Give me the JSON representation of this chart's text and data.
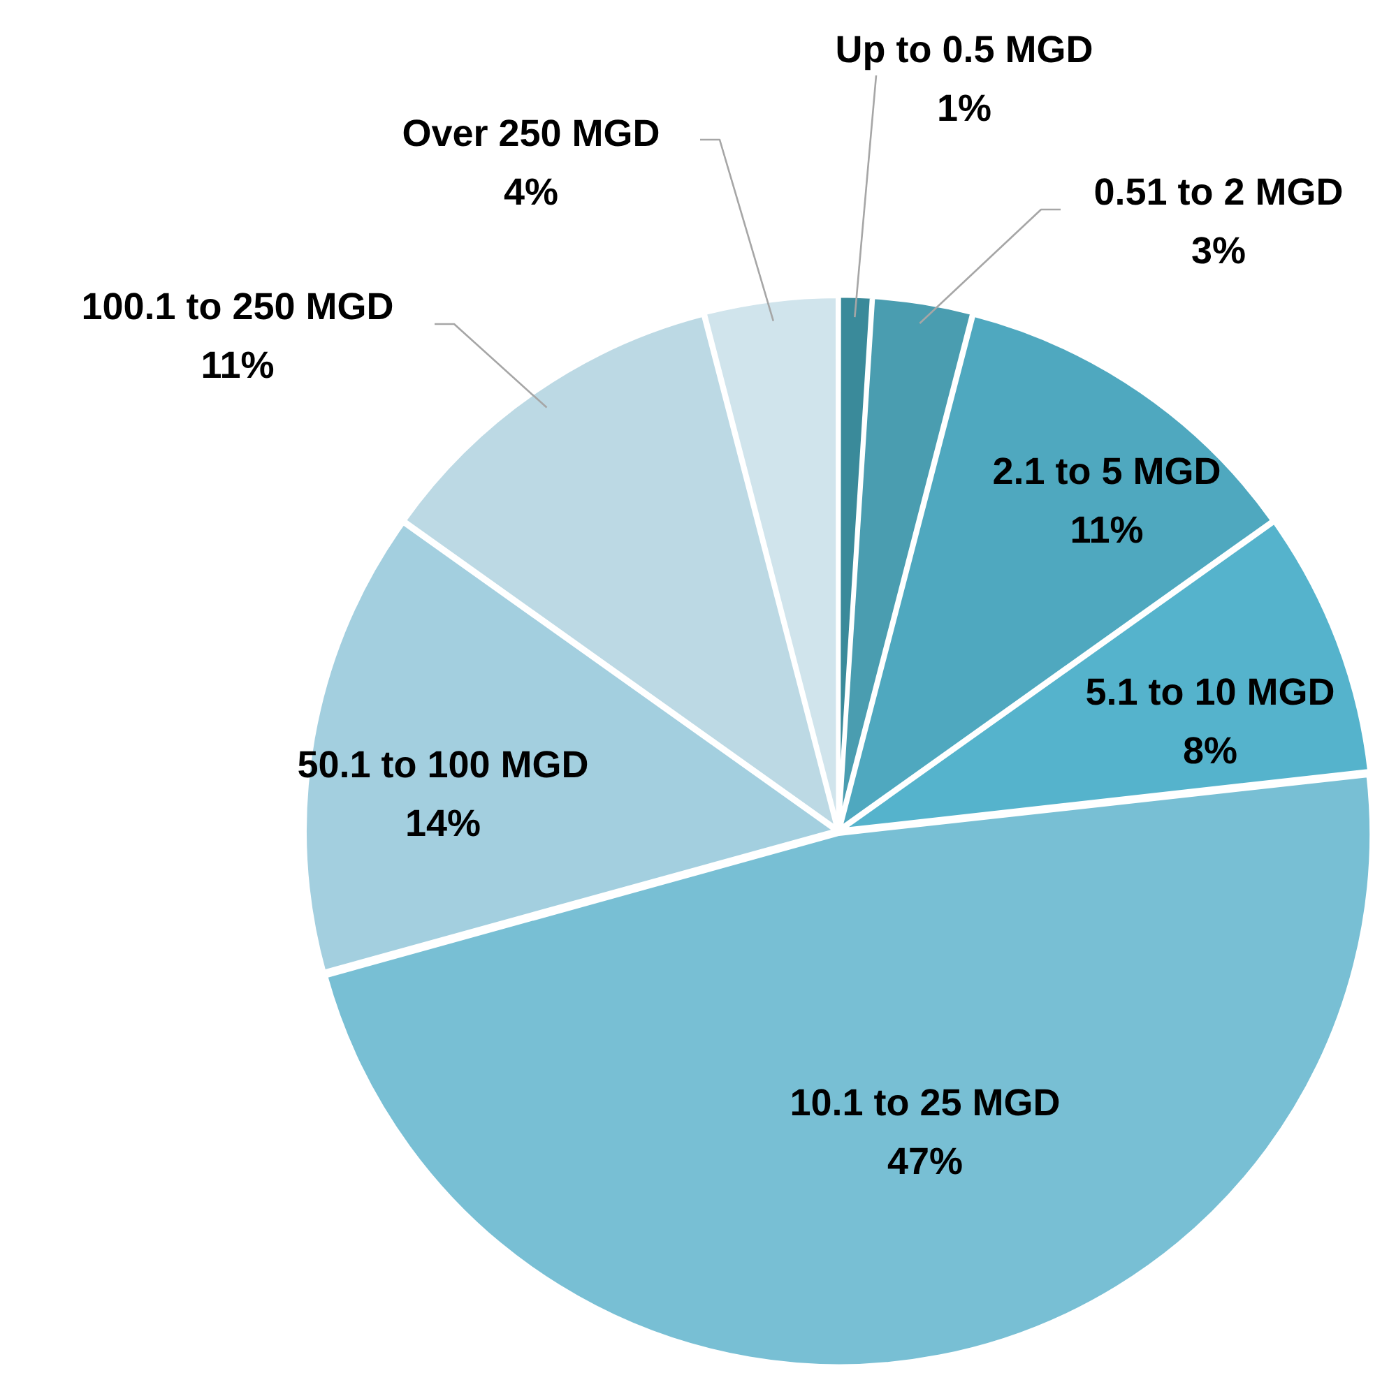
{
  "chart_data": {
    "type": "pie",
    "categories": [
      "Up to 0.5 MGD",
      "0.51 to 2 MGD",
      "2.1 to 5 MGD",
      "5.1 to 10 MGD",
      "10.1 to 25 MGD",
      "50.1 to 100 MGD",
      "100.1 to 250 MGD",
      "Over 250 MGD"
    ],
    "values": [
      1,
      3,
      11,
      8,
      47,
      14,
      11,
      4
    ],
    "colors": [
      "#3a8a9a",
      "#4a9db0",
      "#4fa8bf",
      "#55b3cc",
      "#78bfd4",
      "#a3cfdf",
      "#bcd9e4",
      "#d0e4ec"
    ],
    "value_labels": [
      "1%",
      "3%",
      "11%",
      "8%",
      "47%",
      "14%",
      "11%",
      "4%"
    ],
    "legend": false
  }
}
